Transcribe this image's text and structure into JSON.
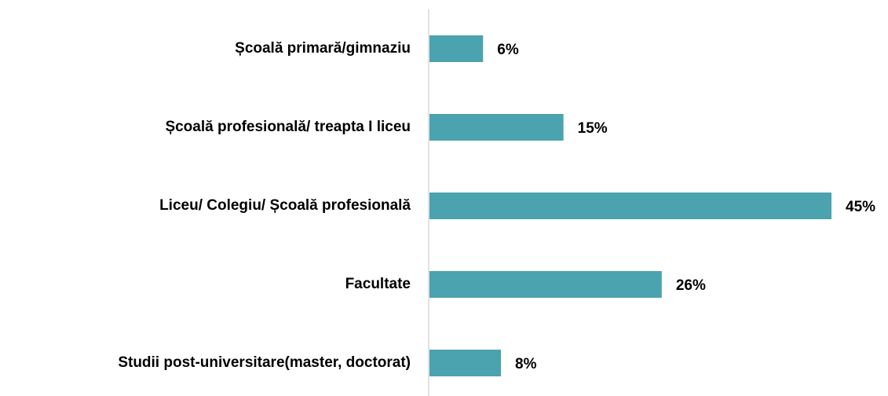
{
  "chart_data": {
    "type": "barh",
    "categories": [
      "Școală primară/gimnaziu",
      "Școală profesională/ treapta I liceu",
      "Liceu/ Colegiu/ Școală profesională",
      "Facultate",
      "Studii post-universitare(master, doctorat)"
    ],
    "values": [
      6,
      15,
      45,
      26,
      8
    ],
    "value_labels": [
      "6%",
      "15%",
      "45%",
      "26%",
      "8%"
    ],
    "color": "#4aa3ae"
  }
}
